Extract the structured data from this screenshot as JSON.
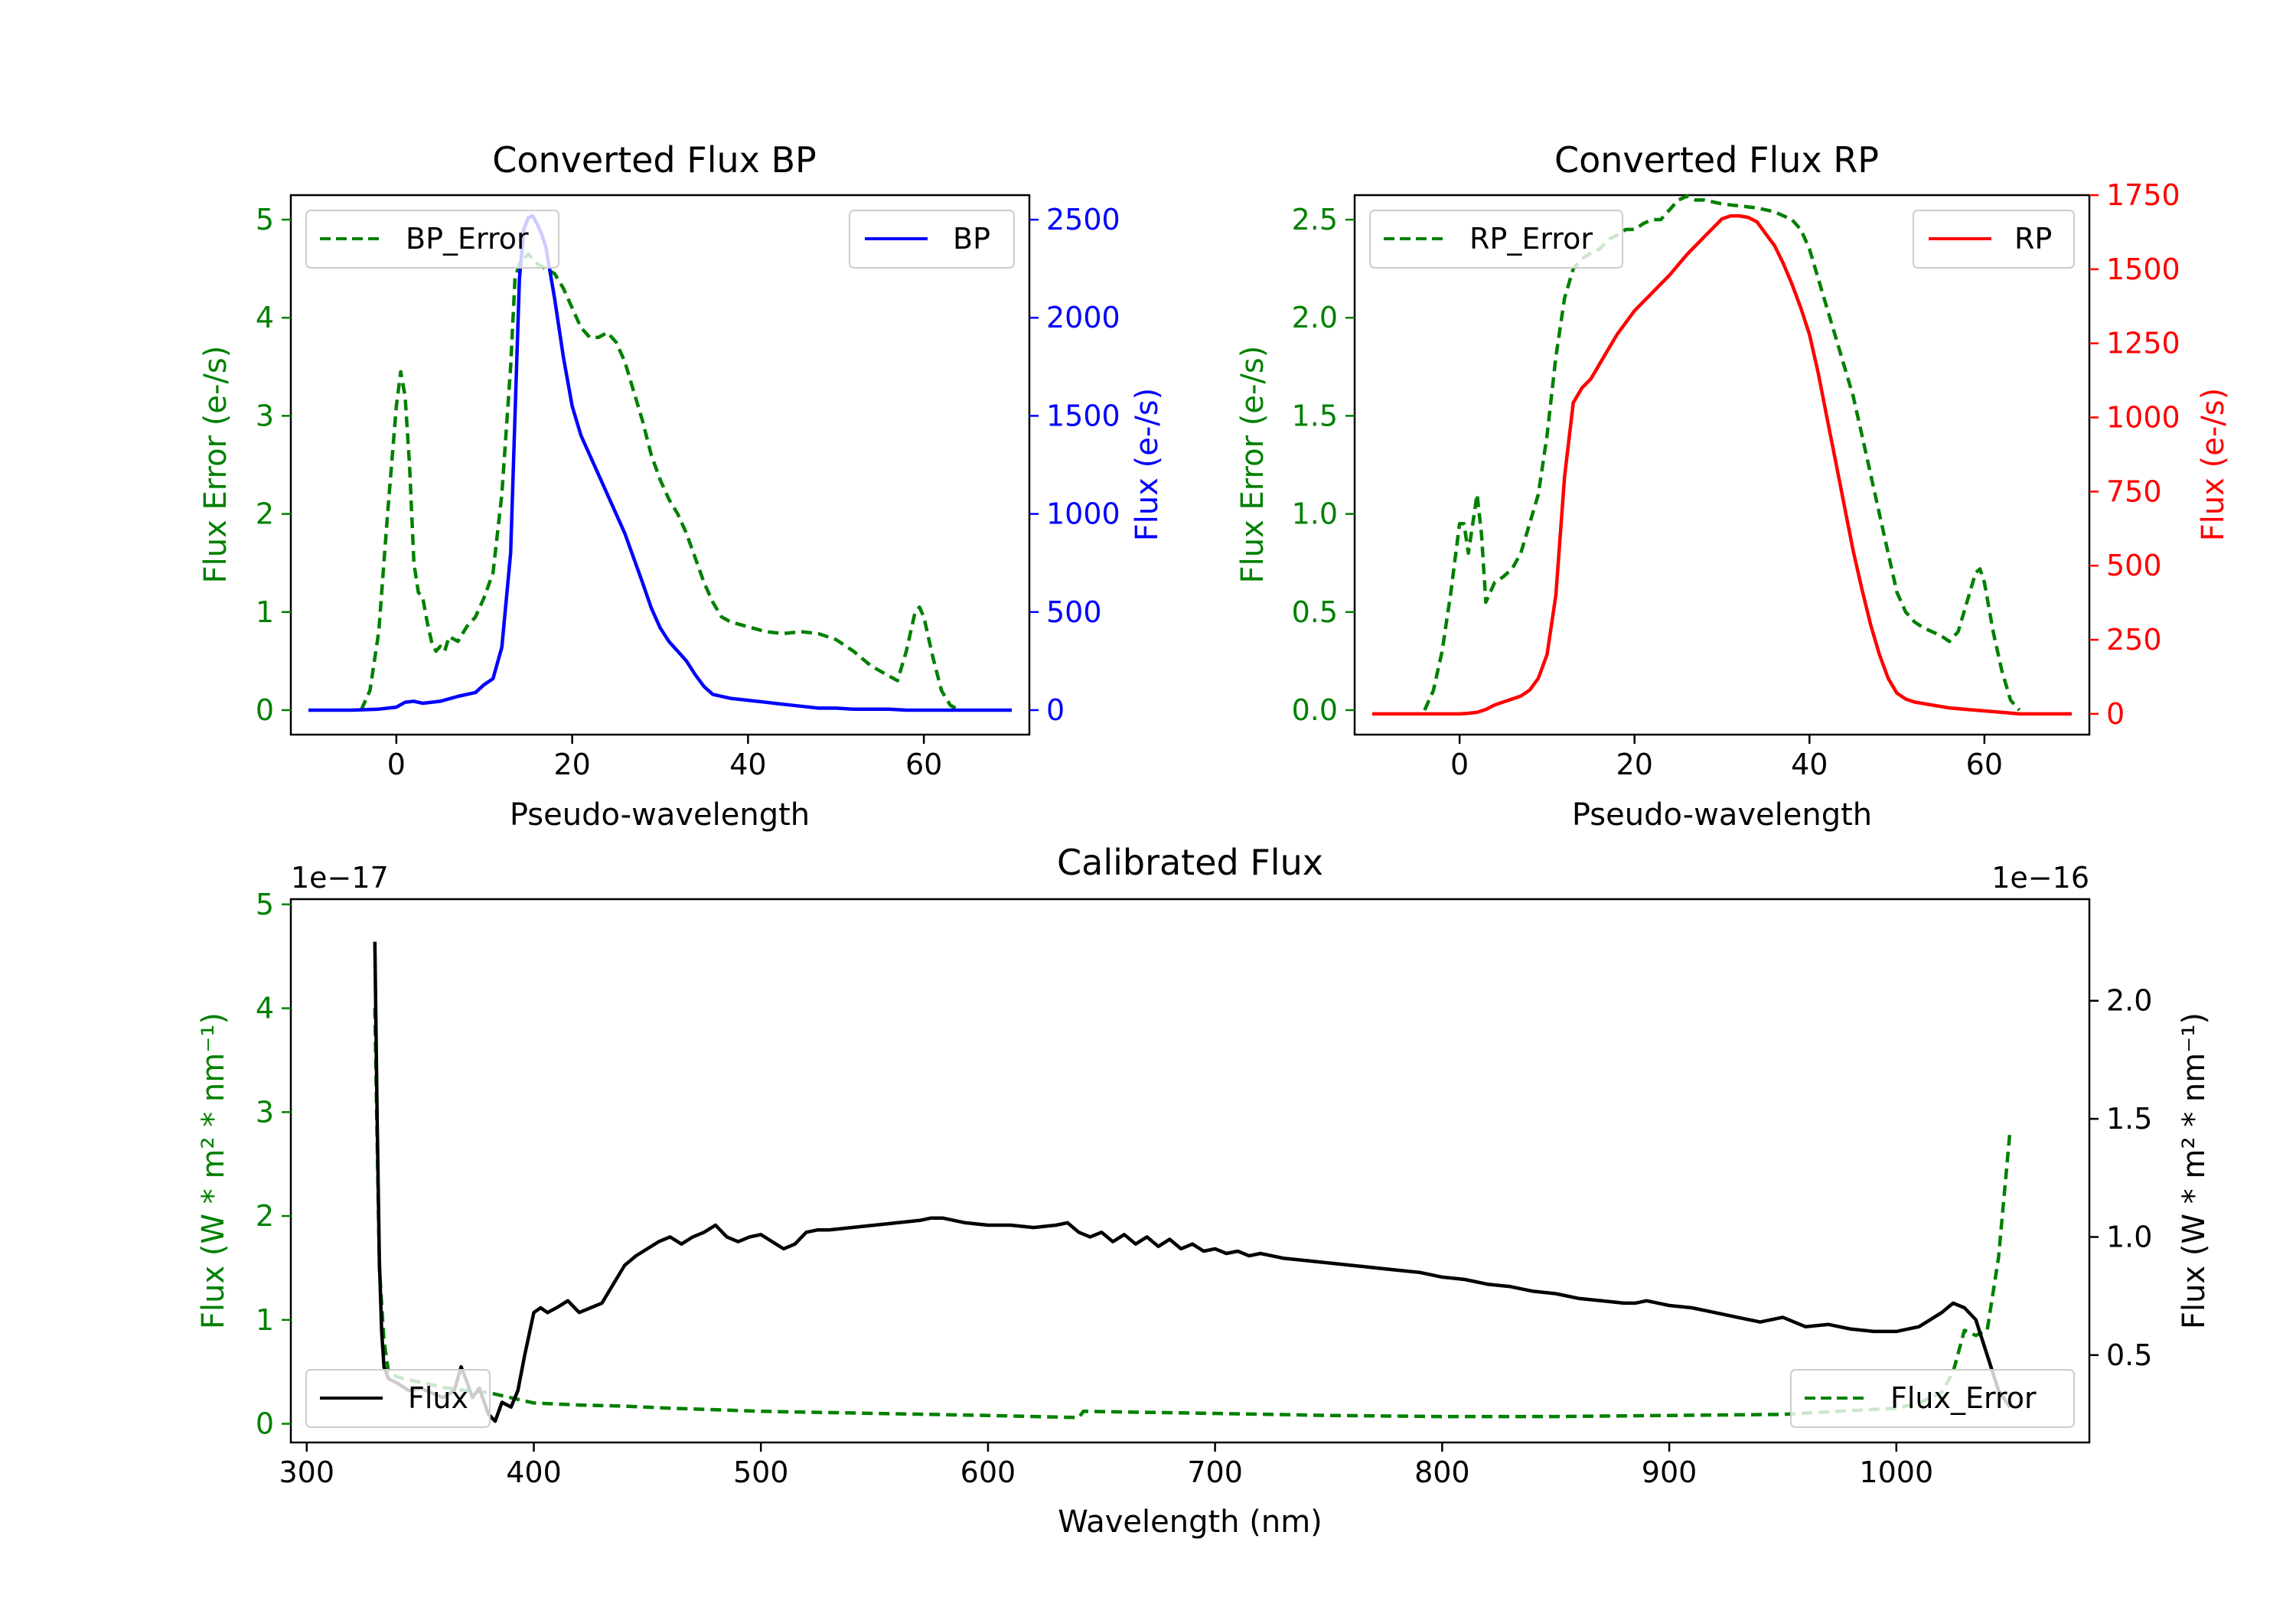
{
  "chart_data": [
    {
      "type": "line",
      "title": "Converted Flux BP",
      "xlabel": "Pseudo-wavelength",
      "ylabel_left": "Flux Error (e-/s)",
      "ylabel_right": "Flux (e-/s)",
      "xlim": [
        -12,
        72
      ],
      "ylim_left": [
        -0.25,
        5.25
      ],
      "ylim_right": [
        -125,
        2625
      ],
      "xticks": [
        "0",
        "20",
        "40",
        "60"
      ],
      "xtick_values": [
        0,
        20,
        40,
        60
      ],
      "yticks_left": [
        "0",
        "1",
        "2",
        "3",
        "4",
        "5"
      ],
      "ytick_values_left": [
        0,
        1,
        2,
        3,
        4,
        5
      ],
      "yticks_right": [
        "0",
        "500",
        "1000",
        "1500",
        "2000",
        "2500"
      ],
      "ytick_values_right": [
        0,
        500,
        1000,
        1500,
        2000,
        2500
      ],
      "left_color": "#008000",
      "right_color": "#0000ff",
      "series": [
        {
          "name": "BP_Error",
          "axis": "left",
          "style": "dashed",
          "color": "#008000",
          "x": [
            -4,
            -3,
            -2,
            -1,
            0,
            0.5,
            1,
            1.5,
            2,
            2.5,
            3,
            3.5,
            4,
            4.5,
            5,
            5.5,
            6,
            7,
            8,
            9,
            10,
            11,
            12,
            13,
            13.5,
            14,
            14.5,
            15,
            15.5,
            16,
            17,
            18,
            19,
            20,
            21,
            22,
            23,
            24,
            25,
            26,
            27,
            28,
            29,
            30,
            31,
            32,
            33,
            34,
            35,
            36,
            37,
            38,
            40,
            42,
            44,
            46,
            48,
            50,
            52,
            54,
            56,
            57,
            58,
            59,
            59.5,
            60,
            61,
            62,
            63,
            64
          ],
          "y": [
            0.0,
            0.2,
            0.8,
            2.0,
            3.1,
            3.45,
            3.2,
            2.5,
            1.5,
            1.2,
            1.15,
            0.9,
            0.7,
            0.6,
            0.65,
            0.6,
            0.75,
            0.7,
            0.85,
            0.95,
            1.15,
            1.4,
            2.2,
            3.5,
            4.4,
            4.55,
            4.6,
            4.65,
            4.6,
            4.55,
            4.5,
            4.45,
            4.3,
            4.1,
            3.9,
            3.8,
            3.8,
            3.85,
            3.75,
            3.55,
            3.25,
            2.95,
            2.6,
            2.35,
            2.15,
            2.0,
            1.8,
            1.55,
            1.3,
            1.1,
            0.95,
            0.9,
            0.85,
            0.8,
            0.78,
            0.8,
            0.78,
            0.72,
            0.6,
            0.45,
            0.35,
            0.3,
            0.6,
            1.0,
            1.05,
            0.95,
            0.55,
            0.2,
            0.05,
            0.0
          ]
        },
        {
          "name": "BP",
          "axis": "right",
          "style": "solid",
          "color": "#0000ff",
          "x": [
            -10,
            -5,
            -2,
            0,
            1,
            2,
            3,
            5,
            7,
            9,
            10,
            11,
            12,
            13,
            13.5,
            14,
            14.5,
            15,
            15.5,
            16,
            16.5,
            17,
            18,
            19,
            20,
            21,
            22,
            24,
            26,
            28,
            29,
            30,
            31,
            32,
            33,
            34,
            35,
            36,
            38,
            40,
            42,
            44,
            46,
            48,
            50,
            52,
            54,
            56,
            58,
            60,
            62,
            64,
            66,
            68,
            70
          ],
          "y": [
            0,
            0,
            5,
            15,
            40,
            45,
            35,
            45,
            70,
            90,
            130,
            160,
            320,
            800,
            1500,
            2200,
            2450,
            2510,
            2520,
            2480,
            2430,
            2360,
            2100,
            1800,
            1550,
            1400,
            1300,
            1100,
            900,
            650,
            520,
            420,
            350,
            300,
            250,
            180,
            120,
            80,
            60,
            50,
            40,
            30,
            20,
            10,
            10,
            5,
            5,
            5,
            0,
            0,
            0,
            0,
            0,
            0,
            0
          ]
        }
      ]
    },
    {
      "type": "line",
      "title": "Converted Flux RP",
      "xlabel": "Pseudo-wavelength",
      "ylabel_left": "Flux Error (e-/s)",
      "ylabel_right": "Flux (e-/s)",
      "xlim": [
        -12,
        72
      ],
      "ylim_left": [
        -0.125,
        2.625
      ],
      "ylim_right": [
        -70,
        1750
      ],
      "xticks": [
        "0",
        "20",
        "40",
        "60"
      ],
      "xtick_values": [
        0,
        20,
        40,
        60
      ],
      "yticks_left": [
        "0.0",
        "0.5",
        "1.0",
        "1.5",
        "2.0",
        "2.5"
      ],
      "ytick_values_left": [
        0,
        0.5,
        1.0,
        1.5,
        2.0,
        2.5
      ],
      "yticks_right": [
        "0",
        "250",
        "500",
        "750",
        "1000",
        "1250",
        "1500",
        "1750"
      ],
      "ytick_values_right": [
        0,
        250,
        500,
        750,
        1000,
        1250,
        1500,
        1750
      ],
      "left_color": "#008000",
      "right_color": "#ff0000",
      "series": [
        {
          "name": "RP_Error",
          "axis": "left",
          "style": "dashed",
          "color": "#008000",
          "x": [
            -4,
            -3,
            -2,
            -1,
            0,
            0.5,
            1,
            1.5,
            2,
            2.5,
            3,
            3.5,
            4,
            5,
            6,
            7,
            8,
            9,
            10,
            11,
            12,
            13,
            14,
            15,
            16,
            17,
            18,
            19,
            20,
            21,
            22,
            23,
            24,
            25,
            26,
            27,
            28,
            30,
            32,
            34,
            36,
            37,
            38,
            39,
            40,
            41,
            42,
            43,
            44,
            45,
            46,
            47,
            48,
            49,
            50,
            51,
            52,
            53,
            54,
            55,
            56,
            57,
            58,
            59,
            59.5,
            60,
            61,
            62,
            63,
            64
          ],
          "y": [
            0.0,
            0.1,
            0.3,
            0.6,
            0.95,
            0.95,
            0.8,
            0.95,
            1.1,
            0.9,
            0.55,
            0.6,
            0.65,
            0.68,
            0.72,
            0.8,
            0.95,
            1.1,
            1.4,
            1.8,
            2.1,
            2.25,
            2.3,
            2.33,
            2.35,
            2.4,
            2.42,
            2.45,
            2.45,
            2.48,
            2.5,
            2.5,
            2.55,
            2.6,
            2.62,
            2.6,
            2.6,
            2.58,
            2.57,
            2.56,
            2.54,
            2.52,
            2.5,
            2.45,
            2.35,
            2.2,
            2.05,
            1.9,
            1.75,
            1.6,
            1.4,
            1.2,
            1.0,
            0.8,
            0.6,
            0.5,
            0.45,
            0.42,
            0.4,
            0.38,
            0.35,
            0.4,
            0.55,
            0.7,
            0.72,
            0.65,
            0.4,
            0.2,
            0.05,
            0.0
          ]
        },
        {
          "name": "RP",
          "axis": "right",
          "style": "solid",
          "color": "#ff0000",
          "x": [
            -10,
            -5,
            -2,
            0,
            1,
            2,
            3,
            4,
            5,
            6,
            7,
            8,
            9,
            10,
            11,
            12,
            13,
            14,
            15,
            16,
            17,
            18,
            19,
            20,
            22,
            24,
            26,
            28,
            29,
            30,
            31,
            32,
            33,
            34,
            35,
            36,
            37,
            38,
            39,
            40,
            41,
            42,
            43,
            44,
            45,
            46,
            47,
            48,
            49,
            50,
            51,
            52,
            54,
            56,
            58,
            60,
            62,
            64,
            66,
            70
          ],
          "y": [
            0,
            0,
            0,
            0,
            2,
            5,
            15,
            30,
            40,
            50,
            60,
            80,
            120,
            200,
            400,
            800,
            1050,
            1100,
            1130,
            1180,
            1230,
            1280,
            1320,
            1360,
            1420,
            1480,
            1550,
            1610,
            1640,
            1670,
            1680,
            1680,
            1675,
            1660,
            1620,
            1580,
            1520,
            1450,
            1370,
            1280,
            1150,
            1000,
            850,
            700,
            550,
            420,
            300,
            200,
            120,
            70,
            50,
            40,
            30,
            20,
            15,
            10,
            5,
            0,
            0,
            0
          ]
        }
      ]
    },
    {
      "type": "line",
      "title": "Calibrated Flux",
      "xlabel": "Wavelength (nm)",
      "ylabel_left": "Flux (W * m² * nm⁻¹)",
      "ylabel_right": "Flux (W * m² * nm⁻¹)",
      "offset_left": "1e−17",
      "offset_right": "1e−16",
      "xlim": [
        293,
        1085
      ],
      "ylim_left": [
        -0.18,
        5.05
      ],
      "ylim_right": [
        0.13,
        2.43
      ],
      "xticks": [
        "300",
        "400",
        "500",
        "600",
        "700",
        "800",
        "900",
        "1000"
      ],
      "xtick_values": [
        300,
        400,
        500,
        600,
        700,
        800,
        900,
        1000
      ],
      "yticks_left": [
        "0",
        "1",
        "2",
        "3",
        "4",
        "5"
      ],
      "ytick_values_left": [
        0,
        1,
        2,
        3,
        4,
        5
      ],
      "yticks_right": [
        "0.5",
        "1.0",
        "1.5",
        "2.0"
      ],
      "ytick_values_right": [
        0.5,
        1.0,
        1.5,
        2.0
      ],
      "left_color": "#008000",
      "right_color": "#000000",
      "series": [
        {
          "name": "Flux_Error",
          "axis": "left",
          "style": "dashed",
          "color": "#008000",
          "x": [
            330,
            332,
            334,
            336,
            340,
            350,
            360,
            370,
            380,
            390,
            400,
            420,
            440,
            460,
            500,
            550,
            600,
            640,
            642,
            700,
            750,
            800,
            850,
            900,
            950,
            1000,
            1010,
            1020,
            1025,
            1030,
            1035,
            1040,
            1045,
            1050
          ],
          "y": [
            4.0,
            1.5,
            0.8,
            0.5,
            0.45,
            0.4,
            0.35,
            0.32,
            0.3,
            0.25,
            0.2,
            0.18,
            0.17,
            0.15,
            0.12,
            0.1,
            0.08,
            0.06,
            0.12,
            0.1,
            0.08,
            0.07,
            0.07,
            0.08,
            0.09,
            0.15,
            0.2,
            0.3,
            0.5,
            0.9,
            0.85,
            0.9,
            1.6,
            2.8
          ]
        },
        {
          "name": "Flux",
          "axis": "right",
          "style": "solid",
          "color": "#000000",
          "x": [
            330,
            331,
            332,
            333,
            334,
            336,
            340,
            345,
            350,
            355,
            360,
            365,
            368,
            370,
            373,
            376,
            380,
            383,
            386,
            390,
            393,
            396,
            400,
            403,
            406,
            410,
            415,
            420,
            425,
            430,
            435,
            440,
            445,
            450,
            455,
            460,
            465,
            470,
            475,
            480,
            485,
            490,
            495,
            500,
            505,
            510,
            515,
            520,
            525,
            530,
            540,
            550,
            560,
            570,
            575,
            580,
            590,
            600,
            610,
            620,
            630,
            635,
            640,
            645,
            650,
            655,
            660,
            665,
            670,
            675,
            680,
            685,
            690,
            695,
            700,
            705,
            710,
            715,
            720,
            730,
            740,
            750,
            760,
            770,
            780,
            790,
            800,
            810,
            820,
            830,
            840,
            850,
            860,
            870,
            880,
            885,
            890,
            900,
            910,
            920,
            930,
            940,
            950,
            960,
            970,
            980,
            990,
            1000,
            1010,
            1020,
            1025,
            1030,
            1035,
            1040,
            1045,
            1050
          ],
          "y": [
            2.25,
            1.5,
            0.9,
            0.6,
            0.45,
            0.4,
            0.38,
            0.35,
            0.36,
            0.34,
            0.32,
            0.35,
            0.45,
            0.4,
            0.32,
            0.36,
            0.25,
            0.22,
            0.3,
            0.28,
            0.35,
            0.5,
            0.68,
            0.7,
            0.68,
            0.7,
            0.73,
            0.68,
            0.7,
            0.72,
            0.8,
            0.88,
            0.92,
            0.95,
            0.98,
            1.0,
            0.97,
            1.0,
            1.02,
            1.05,
            1.0,
            0.98,
            1.0,
            1.01,
            0.98,
            0.95,
            0.97,
            1.02,
            1.03,
            1.03,
            1.04,
            1.05,
            1.06,
            1.07,
            1.08,
            1.08,
            1.06,
            1.05,
            1.05,
            1.04,
            1.05,
            1.06,
            1.02,
            1.0,
            1.02,
            0.98,
            1.01,
            0.97,
            1.0,
            0.96,
            0.99,
            0.95,
            0.97,
            0.94,
            0.95,
            0.93,
            0.94,
            0.92,
            0.93,
            0.91,
            0.9,
            0.89,
            0.88,
            0.87,
            0.86,
            0.85,
            0.83,
            0.82,
            0.8,
            0.79,
            0.77,
            0.76,
            0.74,
            0.73,
            0.72,
            0.72,
            0.73,
            0.71,
            0.7,
            0.68,
            0.66,
            0.64,
            0.66,
            0.62,
            0.63,
            0.61,
            0.6,
            0.6,
            0.62,
            0.68,
            0.72,
            0.7,
            0.65,
            0.5,
            0.35,
            0.28
          ]
        }
      ]
    }
  ]
}
